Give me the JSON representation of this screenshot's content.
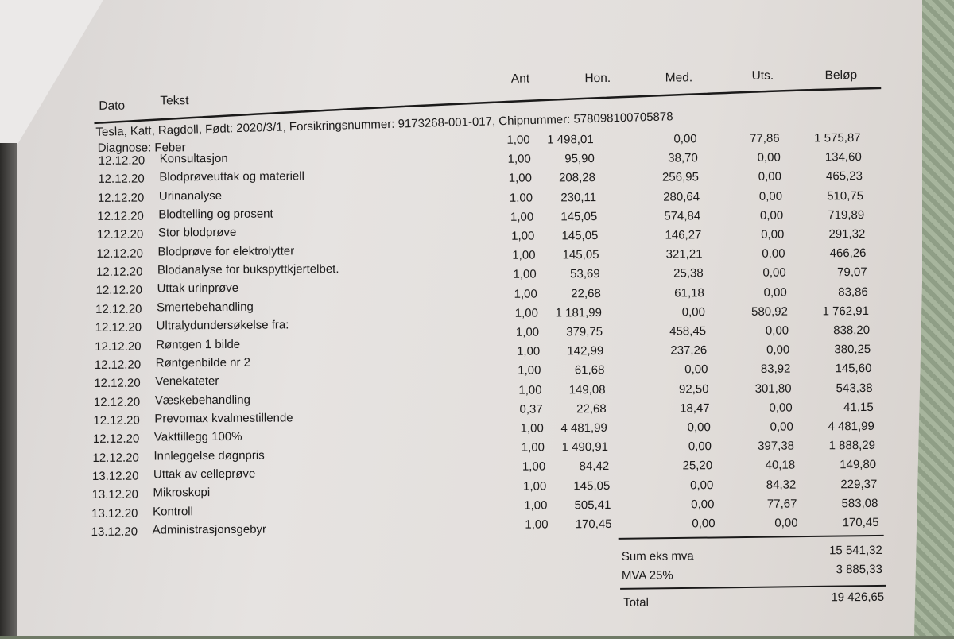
{
  "header": {
    "dato": "Dato",
    "tekst": "Tekst",
    "ant": "Ant",
    "hon": "Hon.",
    "med": "Med.",
    "uts": "Uts.",
    "belop": "Beløp"
  },
  "patient_line": "Tesla, Katt, Ragdoll, Født: 2020/3/1, Forsikringsnummer: 9173268-001-017, Chipnummer: 578098100705878",
  "diagnosis": "Diagnose: Feber",
  "text_rows": [
    {
      "date": "12.12.20",
      "text": "Konsultasjon"
    },
    {
      "date": "12.12.20",
      "text": "Blodprøveuttak og materiell"
    },
    {
      "date": "12.12.20",
      "text": "Urinanalyse"
    },
    {
      "date": "12.12.20",
      "text": "Blodtelling og prosent"
    },
    {
      "date": "12.12.20",
      "text": "Stor blodprøve"
    },
    {
      "date": "12.12.20",
      "text": "Blodprøve for elektrolytter"
    },
    {
      "date": "12.12.20",
      "text": "Blodanalyse for bukspyttkjertelbet."
    },
    {
      "date": "12.12.20",
      "text": "Uttak urinprøve"
    },
    {
      "date": "12.12.20",
      "text": "Smertebehandling"
    },
    {
      "date": "12.12.20",
      "text": "Ultralydundersøkelse fra:"
    },
    {
      "date": "12.12.20",
      "text": "Røntgen 1 bilde"
    },
    {
      "date": "12.12.20",
      "text": "Røntgenbilde nr 2"
    },
    {
      "date": "12.12.20",
      "text": "Venekateter"
    },
    {
      "date": "12.12.20",
      "text": "Væskebehandling"
    },
    {
      "date": "12.12.20",
      "text": "Prevomax kvalmestillende"
    },
    {
      "date": "12.12.20",
      "text": "Vakttillegg 100%"
    },
    {
      "date": "12.12.20",
      "text": "Innleggelse døgnpris"
    },
    {
      "date": "13.12.20",
      "text": "Uttak av celleprøve"
    },
    {
      "date": "13.12.20",
      "text": "Mikroskopi"
    },
    {
      "date": "13.12.20",
      "text": "Kontroll"
    },
    {
      "date": "13.12.20",
      "text": "Administrasjonsgebyr"
    }
  ],
  "amount_rows": [
    [
      "1,00",
      "1 498,01",
      "0,00",
      "77,86",
      "1 575,87"
    ],
    [
      "1,00",
      "95,90",
      "38,70",
      "0,00",
      "134,60"
    ],
    [
      "1,00",
      "208,28",
      "256,95",
      "0,00",
      "465,23"
    ],
    [
      "1,00",
      "230,11",
      "280,64",
      "0,00",
      "510,75"
    ],
    [
      "1,00",
      "145,05",
      "574,84",
      "0,00",
      "719,89"
    ],
    [
      "1,00",
      "145,05",
      "146,27",
      "0,00",
      "291,32"
    ],
    [
      "1,00",
      "145,05",
      "321,21",
      "0,00",
      "466,26"
    ],
    [
      "1,00",
      "53,69",
      "25,38",
      "0,00",
      "79,07"
    ],
    [
      "1,00",
      "22,68",
      "61,18",
      "0,00",
      "83,86"
    ],
    [
      "1,00",
      "1 181,99",
      "0,00",
      "580,92",
      "1 762,91"
    ],
    [
      "1,00",
      "379,75",
      "458,45",
      "0,00",
      "838,20"
    ],
    [
      "1,00",
      "142,99",
      "237,26",
      "0,00",
      "380,25"
    ],
    [
      "1,00",
      "61,68",
      "0,00",
      "83,92",
      "145,60"
    ],
    [
      "1,00",
      "149,08",
      "92,50",
      "301,80",
      "543,38"
    ],
    [
      "0,37",
      "22,68",
      "18,47",
      "0,00",
      "41,15"
    ],
    [
      "1,00",
      "4 481,99",
      "0,00",
      "0,00",
      "4 481,99"
    ],
    [
      "1,00",
      "1 490,91",
      "0,00",
      "397,38",
      "1 888,29"
    ],
    [
      "1,00",
      "84,42",
      "25,20",
      "40,18",
      "149,80"
    ],
    [
      "1,00",
      "145,05",
      "0,00",
      "84,32",
      "229,37"
    ],
    [
      "1,00",
      "505,41",
      "0,00",
      "77,67",
      "583,08"
    ],
    [
      "1,00",
      "170,45",
      "0,00",
      "0,00",
      "170,45"
    ]
  ],
  "summary": {
    "sum_label": "Sum eks mva",
    "sum_value": "15 541,32",
    "vat_label": "MVA 25%",
    "vat_value": "3 885,33",
    "total_label": "Total",
    "total_value": "19 426,65"
  }
}
